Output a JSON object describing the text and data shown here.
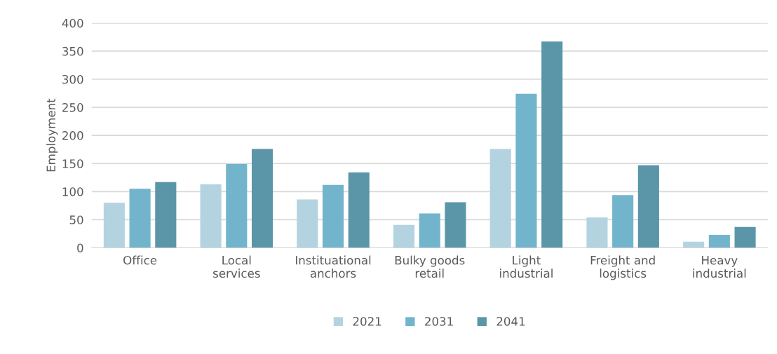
{
  "chart_data": {
    "type": "bar",
    "ylabel": "Employment",
    "categories": [
      "Office",
      "Local services",
      "Instituational anchors",
      "Bulky goods retail",
      "Light industrial",
      "Freight and logistics",
      "Heavy industrial"
    ],
    "series": [
      {
        "name": "2021",
        "color": "#b4d3e0",
        "values": [
          80,
          113,
          86,
          41,
          176,
          54,
          11
        ]
      },
      {
        "name": "2031",
        "color": "#72b4cc",
        "values": [
          105,
          149,
          112,
          61,
          274,
          94,
          23
        ]
      },
      {
        "name": "2041",
        "color": "#5b96a8",
        "values": [
          117,
          176,
          134,
          81,
          367,
          147,
          37
        ]
      }
    ],
    "ylim": [
      0,
      400
    ],
    "yticks": [
      0,
      50,
      100,
      150,
      200,
      250,
      300,
      350,
      400
    ],
    "grid": "y",
    "legend": "bottom"
  }
}
